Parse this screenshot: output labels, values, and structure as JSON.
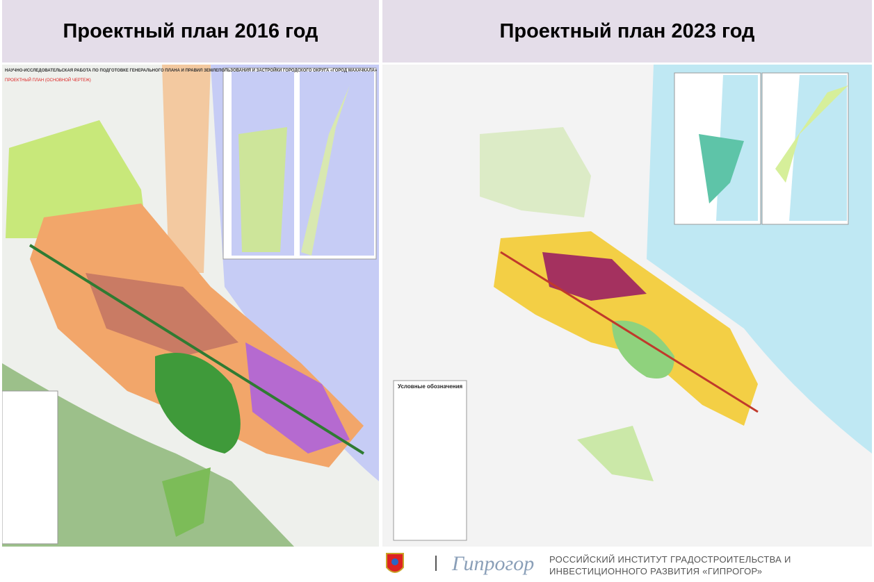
{
  "headers": {
    "left": "Проектный план 2016 год",
    "right": "Проектный план 2023 год"
  },
  "maps": {
    "left": {
      "title": "НАУЧНО-ИССЛЕДОВАТЕЛЬСКАЯ РАБОТА ПО ПОДГОТОВКЕ ГЕНЕРАЛЬНОГО ПЛАНА И ПРАВИЛ ЗЕМЛЕПОЛЬЗОВАНИЯ И ЗАСТРОЙКИ ГОРОДСКОГО ОКРУГА «ГОРОД МАХАЧКАЛА»",
      "subtitle": "ПРОЕКТНЫЙ ПЛАН (ОСНОВНОЙ ЧЕРТЕЖ)"
    },
    "right": {
      "legend_title": "Условные обозначения"
    }
  },
  "footer": {
    "logo_text": "Гипрогор",
    "organization_line1": "РОССИЙСКИЙ ИНСТИТУТ ГРАДОСТРОИТЕЛЬСТВА И",
    "organization_line2": "ИНВЕСТИЦИОННОГО РАЗВИТИЯ «ГИПРОГОР»"
  }
}
